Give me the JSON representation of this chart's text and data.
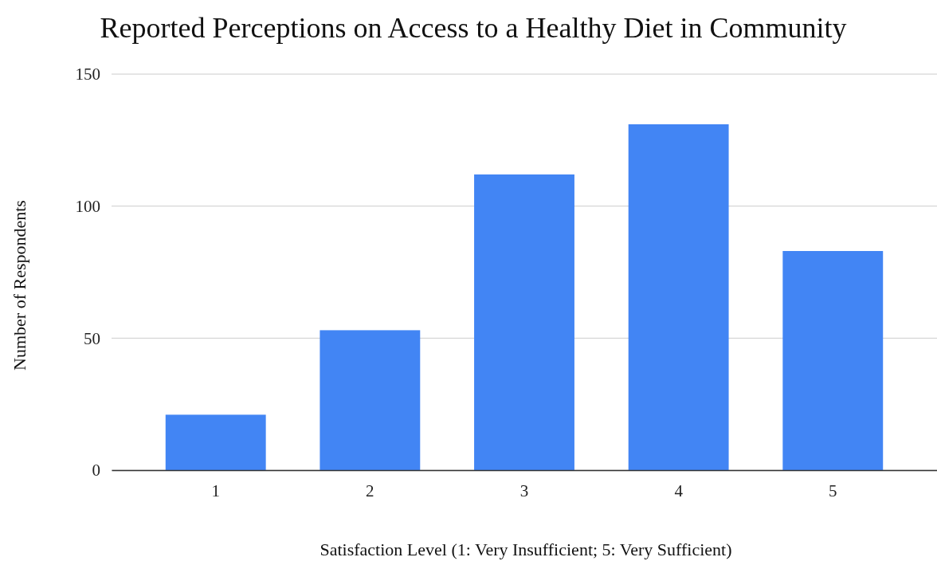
{
  "chart_data": {
    "type": "bar",
    "title": "Reported Perceptions on Access to a Healthy Diet in Community",
    "xlabel": "Satisfaction Level (1: Very Insufficient; 5: Very Sufficient)",
    "ylabel": "Number of Respondents",
    "categories": [
      "1",
      "2",
      "3",
      "4",
      "5"
    ],
    "values": [
      21,
      53,
      112,
      131,
      83
    ],
    "color": "#4285f4",
    "ylim": [
      0,
      150
    ],
    "yticks": [
      0,
      50,
      100,
      150
    ],
    "grid": "y"
  }
}
